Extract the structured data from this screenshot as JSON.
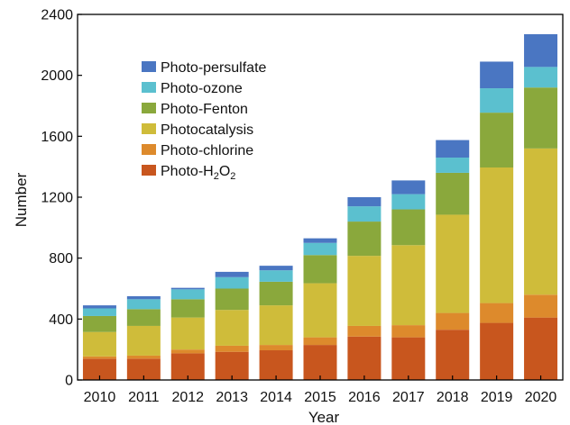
{
  "chart_data": {
    "type": "bar",
    "stacked": true,
    "xlabel": "Year",
    "ylabel": "Number",
    "ylim": [
      0,
      2400
    ],
    "yticks": [
      0,
      400,
      800,
      1200,
      1600,
      2000,
      2400
    ],
    "grid": false,
    "legend_position": "top-left",
    "categories": [
      "2010",
      "2011",
      "2012",
      "2013",
      "2014",
      "2015",
      "2016",
      "2017",
      "2018",
      "2019",
      "2020"
    ],
    "series": [
      {
        "name": "Photo-H2O2",
        "label_main": "Photo-H",
        "label_sub1": "2",
        "label_mid": "O",
        "label_sub2": "2",
        "color": "#c8561e",
        "values": [
          140,
          140,
          175,
          185,
          195,
          230,
          285,
          280,
          330,
          375,
          410
        ]
      },
      {
        "name": "Photo-chlorine",
        "label_main": "Photo-chlorine",
        "color": "#dd8a2c",
        "values": [
          15,
          20,
          25,
          40,
          35,
          50,
          70,
          80,
          110,
          130,
          150
        ]
      },
      {
        "name": "Photocatalysis",
        "label_main": "Photocatalysis",
        "color": "#cfbc3a",
        "values": [
          160,
          195,
          210,
          235,
          260,
          355,
          460,
          525,
          645,
          890,
          960
        ]
      },
      {
        "name": "Photo-Fenton",
        "label_main": "Photo-Fenton",
        "color": "#8aa83c",
        "values": [
          105,
          110,
          120,
          140,
          155,
          185,
          225,
          235,
          275,
          360,
          400
        ]
      },
      {
        "name": "Photo-ozone",
        "label_main": "Photo-ozone",
        "color": "#5bc0cf",
        "values": [
          50,
          65,
          65,
          75,
          75,
          80,
          100,
          100,
          100,
          160,
          135
        ]
      },
      {
        "name": "Photo-persulfate",
        "label_main": "Photo-persulfate",
        "color": "#4a76c2",
        "values": [
          20,
          20,
          10,
          35,
          30,
          30,
          60,
          90,
          115,
          175,
          215
        ]
      }
    ],
    "legend_order": [
      5,
      4,
      3,
      2,
      1,
      0
    ]
  }
}
